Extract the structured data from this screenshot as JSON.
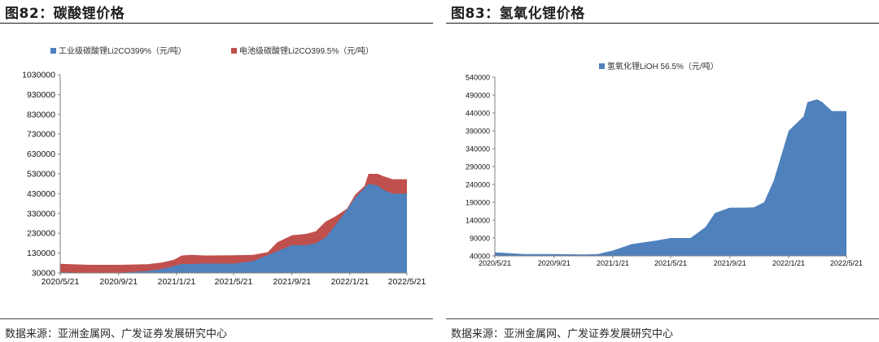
{
  "panels": [
    {
      "title": "图82：碳酸锂价格",
      "source": "数据来源：亚洲金属网、广发证券发展研究中心"
    },
    {
      "title": "图83：氢氧化锂价格",
      "source": "数据来源：亚洲金属网、广发证券发展研究中心"
    }
  ],
  "chart_data": [
    {
      "type": "area",
      "title": "",
      "xlabel": "",
      "ylabel": "",
      "ylim": [
        30000,
        1030000
      ],
      "yticks": [
        "1030000",
        "930000",
        "830000",
        "730000",
        "630000",
        "530000",
        "430000",
        "330000",
        "230000",
        "130000",
        "30000"
      ],
      "xticks": [
        "2020/5/21",
        "2020/9/21",
        "2021/1/21",
        "2021/5/21",
        "2021/9/21",
        "2022/1/21",
        "2022/5/21"
      ],
      "xrange": [
        "2020/5/21",
        "2022/5/21"
      ],
      "grid": false,
      "legend": "top",
      "stacked_overlay": true,
      "x": [
        "2020/5/21",
        "2020/7/21",
        "2020/9/21",
        "2020/11/21",
        "2020/12/21",
        "2021/1/15",
        "2021/2/1",
        "2021/2/21",
        "2021/3/21",
        "2021/5/21",
        "2021/7/1",
        "2021/8/1",
        "2021/8/21",
        "2021/9/21",
        "2021/10/21",
        "2021/11/10",
        "2021/12/1",
        "2021/12/21",
        "2022/1/15",
        "2022/2/1",
        "2022/2/21",
        "2022/3/1",
        "2022/3/21",
        "2022/4/1",
        "2022/4/21",
        "2022/5/21"
      ],
      "series": [
        {
          "name": "电池级碳酸锂Li2CO399.5%（元/吨）",
          "color": "#c0504d",
          "values": [
            46000,
            41000,
            41000,
            44000,
            53000,
            66000,
            88000,
            91000,
            88000,
            89000,
            91000,
            105000,
            155000,
            190000,
            197000,
            210000,
            260000,
            285000,
            325000,
            395000,
            440000,
            500000,
            500000,
            488000,
            473000,
            473000
          ]
        },
        {
          "name": "工业级碳酸锂Li2CO399%（元/吨）",
          "color": "#4f81bd",
          "values": [
            4000,
            -3000,
            1000,
            10000,
            20000,
            35000,
            45000,
            45000,
            48000,
            47000,
            60000,
            90000,
            110000,
            140000,
            140000,
            150000,
            180000,
            240000,
            320000,
            380000,
            430000,
            450000,
            440000,
            420000,
            400000,
            400000
          ]
        }
      ]
    },
    {
      "type": "area",
      "title": "",
      "xlabel": "",
      "ylabel": "",
      "ylim": [
        40000,
        540000
      ],
      "yticks": [
        "540000",
        "490000",
        "440000",
        "390000",
        "340000",
        "290000",
        "240000",
        "190000",
        "140000",
        "90000",
        "40000"
      ],
      "xticks": [
        "2020/5/21",
        "2020/9/21",
        "2021/1/21",
        "2021/5/21",
        "2021/9/21",
        "2022/1/21",
        "2022/5/21"
      ],
      "xrange": [
        "2020/5/21",
        "2022/5/21"
      ],
      "grid": false,
      "legend": "top",
      "x": [
        "2020/5/21",
        "2020/7/21",
        "2020/9/21",
        "2020/11/21",
        "2020/12/21",
        "2021/1/21",
        "2021/3/1",
        "2021/4/21",
        "2021/5/21",
        "2021/7/1",
        "2021/8/1",
        "2021/8/21",
        "2021/9/21",
        "2021/10/21",
        "2021/11/10",
        "2021/12/1",
        "2021/12/21",
        "2022/1/21",
        "2022/2/21",
        "2022/3/1",
        "2022/3/21",
        "2022/4/1",
        "2022/4/21",
        "2022/5/21"
      ],
      "series": [
        {
          "name": "氢氧化锂LiOH 56.5%（元/吨）",
          "color": "#4f81bd",
          "values": [
            50000,
            45000,
            45000,
            44000,
            45000,
            55000,
            73000,
            83000,
            90000,
            90000,
            120000,
            160000,
            175000,
            175000,
            176000,
            190000,
            250000,
            390000,
            430000,
            470000,
            478000,
            470000,
            445000,
            445000
          ]
        }
      ]
    }
  ]
}
